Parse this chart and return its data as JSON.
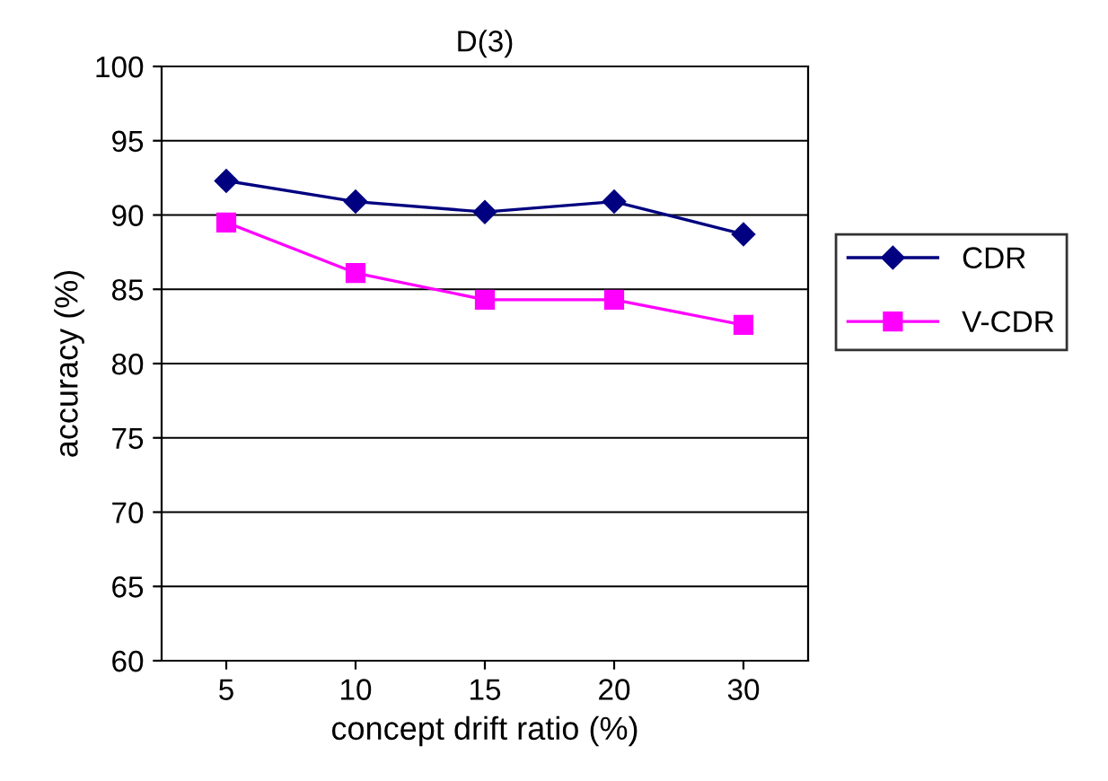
{
  "chart_data": {
    "type": "line",
    "title": "D(3)",
    "xlabel": "concept drift ratio (%)",
    "ylabel": "accuracy (%)",
    "categories": [
      "5",
      "10",
      "15",
      "20",
      "30"
    ],
    "series": [
      {
        "name": "CDR",
        "color": "#000080",
        "marker": "diamond",
        "values": [
          92.3,
          90.9,
          90.2,
          90.9,
          88.7
        ]
      },
      {
        "name": "V-CDR",
        "color": "#ff00ff",
        "marker": "square",
        "values": [
          89.5,
          86.1,
          84.3,
          84.3,
          82.6
        ]
      }
    ],
    "ylim": [
      60,
      100
    ],
    "yticks": [
      60,
      65,
      70,
      75,
      80,
      85,
      90,
      95,
      100
    ],
    "grid": "y",
    "legend": "right",
    "line_style": "solid"
  }
}
